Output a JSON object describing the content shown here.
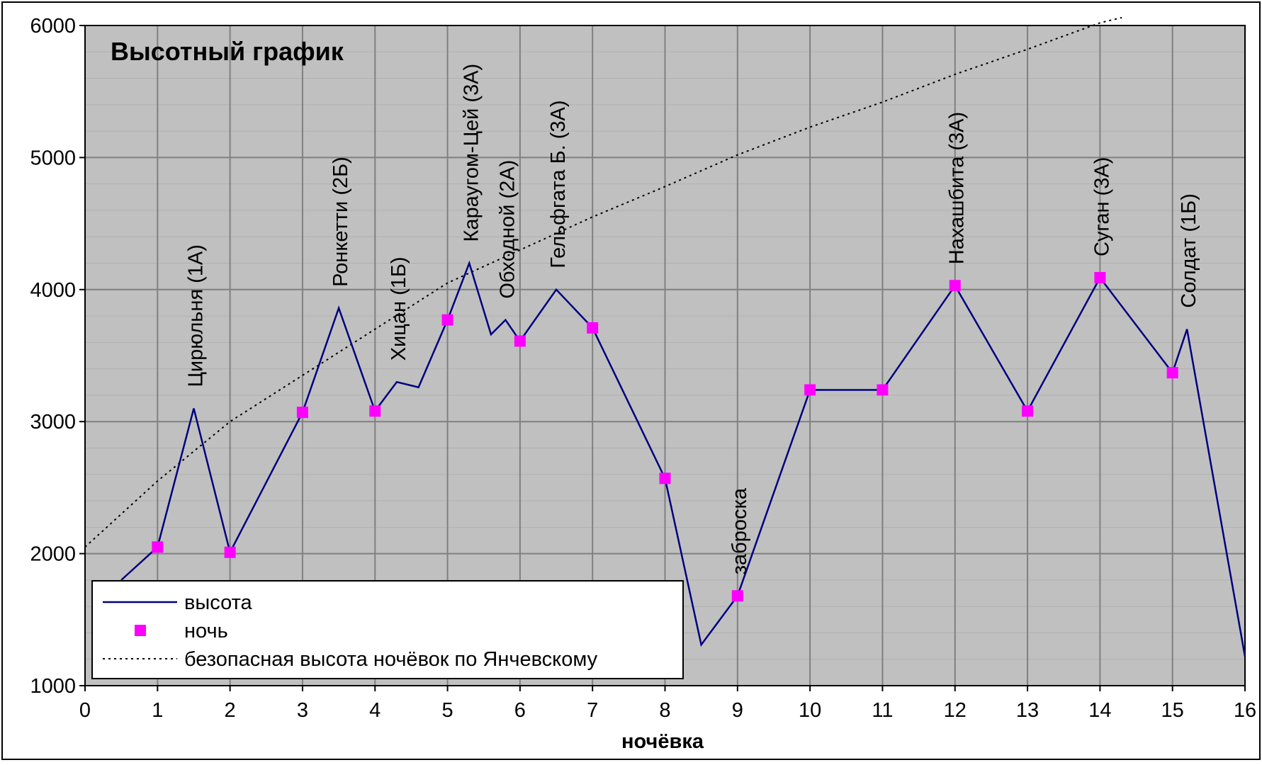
{
  "chart_data": {
    "type": "line",
    "title": "Высотный график",
    "xlabel": "ночёвка",
    "ylabel": "",
    "xlim": [
      0,
      16
    ],
    "ylim": [
      1000,
      6000
    ],
    "xticks": [
      0,
      1,
      2,
      3,
      4,
      5,
      6,
      7,
      8,
      9,
      10,
      11,
      12,
      13,
      14,
      15,
      16
    ],
    "yticks": [
      1000,
      2000,
      3000,
      4000,
      5000,
      6000
    ],
    "grid": true,
    "legend_position": "bottom-left",
    "colors": {
      "plot_bg": "#c0c0c0",
      "line": "#000080",
      "marker": "#ff00ff",
      "safe": "#000000",
      "grid": "#808080"
    },
    "series": [
      {
        "name": "высота",
        "style": "line",
        "points": [
          [
            0.5,
            1800
          ],
          [
            1,
            2050
          ],
          [
            1.5,
            3100
          ],
          [
            2,
            2010
          ],
          [
            3,
            3070
          ],
          [
            3.5,
            3860
          ],
          [
            4,
            3080
          ],
          [
            4.3,
            3300
          ],
          [
            4.6,
            3260
          ],
          [
            5,
            3770
          ],
          [
            5.3,
            4200
          ],
          [
            5.6,
            3660
          ],
          [
            5.8,
            3770
          ],
          [
            6,
            3610
          ],
          [
            6.5,
            4000
          ],
          [
            7,
            3710
          ],
          [
            8,
            2570
          ],
          [
            8.5,
            1310
          ],
          [
            9,
            1680
          ],
          [
            10,
            3240
          ],
          [
            11,
            3240
          ],
          [
            12,
            4030
          ],
          [
            13,
            3080
          ],
          [
            14,
            4090
          ],
          [
            15,
            3370
          ],
          [
            15.2,
            3700
          ],
          [
            16,
            1220
          ]
        ]
      },
      {
        "name": "ночь",
        "style": "markers",
        "points": [
          [
            1,
            2050
          ],
          [
            2,
            2010
          ],
          [
            3,
            3070
          ],
          [
            4,
            3080
          ],
          [
            5,
            3770
          ],
          [
            6,
            3610
          ],
          [
            7,
            3710
          ],
          [
            8,
            2570
          ],
          [
            9,
            1680
          ],
          [
            10,
            3240
          ],
          [
            11,
            3240
          ],
          [
            12,
            4030
          ],
          [
            13,
            3080
          ],
          [
            14,
            4090
          ],
          [
            15,
            3370
          ]
        ]
      },
      {
        "name": "безопасная высота ночёвок по Янчевскому",
        "style": "dotted",
        "points": [
          [
            0,
            2050
          ],
          [
            1,
            2550
          ],
          [
            2,
            3000
          ],
          [
            3,
            3350
          ],
          [
            4,
            3700
          ],
          [
            5,
            4050
          ],
          [
            6,
            4300
          ],
          [
            7,
            4550
          ],
          [
            8,
            4780
          ],
          [
            9,
            5020
          ],
          [
            10,
            5230
          ],
          [
            11,
            5420
          ],
          [
            12,
            5630
          ],
          [
            13,
            5820
          ],
          [
            14,
            6020
          ],
          [
            14.3,
            6060
          ]
        ]
      }
    ],
    "annotations": [
      {
        "text": "Цирюльня (1А)",
        "x": 1.5,
        "y": 3100
      },
      {
        "text": "Ронкетти (2Б)",
        "x": 3.5,
        "y": 3860
      },
      {
        "text": "Хицан (1Б)",
        "x": 4.3,
        "y": 3300
      },
      {
        "text": "Караугом-Цей (3А)",
        "x": 5.3,
        "y": 4200
      },
      {
        "text": "Обходной (2А)",
        "x": 5.8,
        "y": 3770
      },
      {
        "text": "Гельфгата Б. (3А)",
        "x": 6.5,
        "y": 4000
      },
      {
        "text": "заброска",
        "x": 9,
        "y": 1680
      },
      {
        "text": "Нахашбита (3А)",
        "x": 12,
        "y": 4030
      },
      {
        "text": "Суган (3А)",
        "x": 14,
        "y": 4090
      },
      {
        "text": "Солдат (1Б)",
        "x": 15.2,
        "y": 3700
      }
    ]
  }
}
